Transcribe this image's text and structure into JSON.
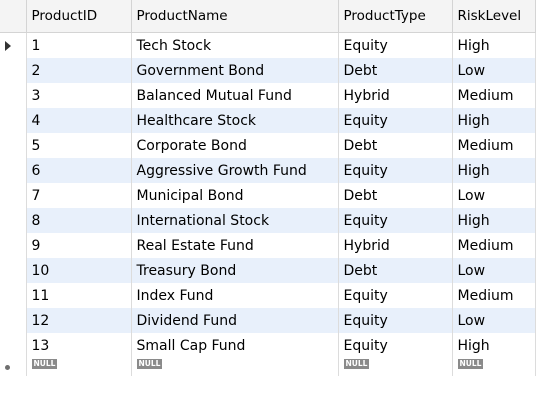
{
  "result_grid": {
    "columns": [
      {
        "key": "ProductID",
        "label": "ProductID"
      },
      {
        "key": "ProductName",
        "label": "ProductName"
      },
      {
        "key": "ProductType",
        "label": "ProductType"
      },
      {
        "key": "RiskLevel",
        "label": "RiskLevel"
      }
    ],
    "rows": [
      {
        "ProductID": "1",
        "ProductName": "Tech Stock",
        "ProductType": "Equity",
        "RiskLevel": "High"
      },
      {
        "ProductID": "2",
        "ProductName": "Government Bond",
        "ProductType": "Debt",
        "RiskLevel": "Low"
      },
      {
        "ProductID": "3",
        "ProductName": "Balanced Mutual Fund",
        "ProductType": "Hybrid",
        "RiskLevel": "Medium"
      },
      {
        "ProductID": "4",
        "ProductName": "Healthcare Stock",
        "ProductType": "Equity",
        "RiskLevel": "High"
      },
      {
        "ProductID": "5",
        "ProductName": "Corporate Bond",
        "ProductType": "Debt",
        "RiskLevel": "Medium"
      },
      {
        "ProductID": "6",
        "ProductName": "Aggressive Growth Fund",
        "ProductType": "Equity",
        "RiskLevel": "High"
      },
      {
        "ProductID": "7",
        "ProductName": "Municipal Bond",
        "ProductType": "Debt",
        "RiskLevel": "Low"
      },
      {
        "ProductID": "8",
        "ProductName": "International Stock",
        "ProductType": "Equity",
        "RiskLevel": "High"
      },
      {
        "ProductID": "9",
        "ProductName": "Real Estate Fund",
        "ProductType": "Hybrid",
        "RiskLevel": "Medium"
      },
      {
        "ProductID": "10",
        "ProductName": "Treasury Bond",
        "ProductType": "Debt",
        "RiskLevel": "Low"
      },
      {
        "ProductID": "11",
        "ProductName": "Index Fund",
        "ProductType": "Equity",
        "RiskLevel": "Medium"
      },
      {
        "ProductID": "12",
        "ProductName": "Dividend Fund",
        "ProductType": "Equity",
        "RiskLevel": "Low"
      },
      {
        "ProductID": "13",
        "ProductName": "Small Cap Fund",
        "ProductType": "Equity",
        "RiskLevel": "High"
      }
    ],
    "new_row_placeholder": "NULL",
    "current_row_marker_icon": "current-row-arrow-icon",
    "new_row_marker_icon": "new-row-dot-icon",
    "colors": {
      "header_bg": "#f4f4f4",
      "alt_row_bg": "#e8f0fb",
      "row_bg": "#ffffff",
      "null_badge_bg": "#8a8a8a"
    }
  }
}
